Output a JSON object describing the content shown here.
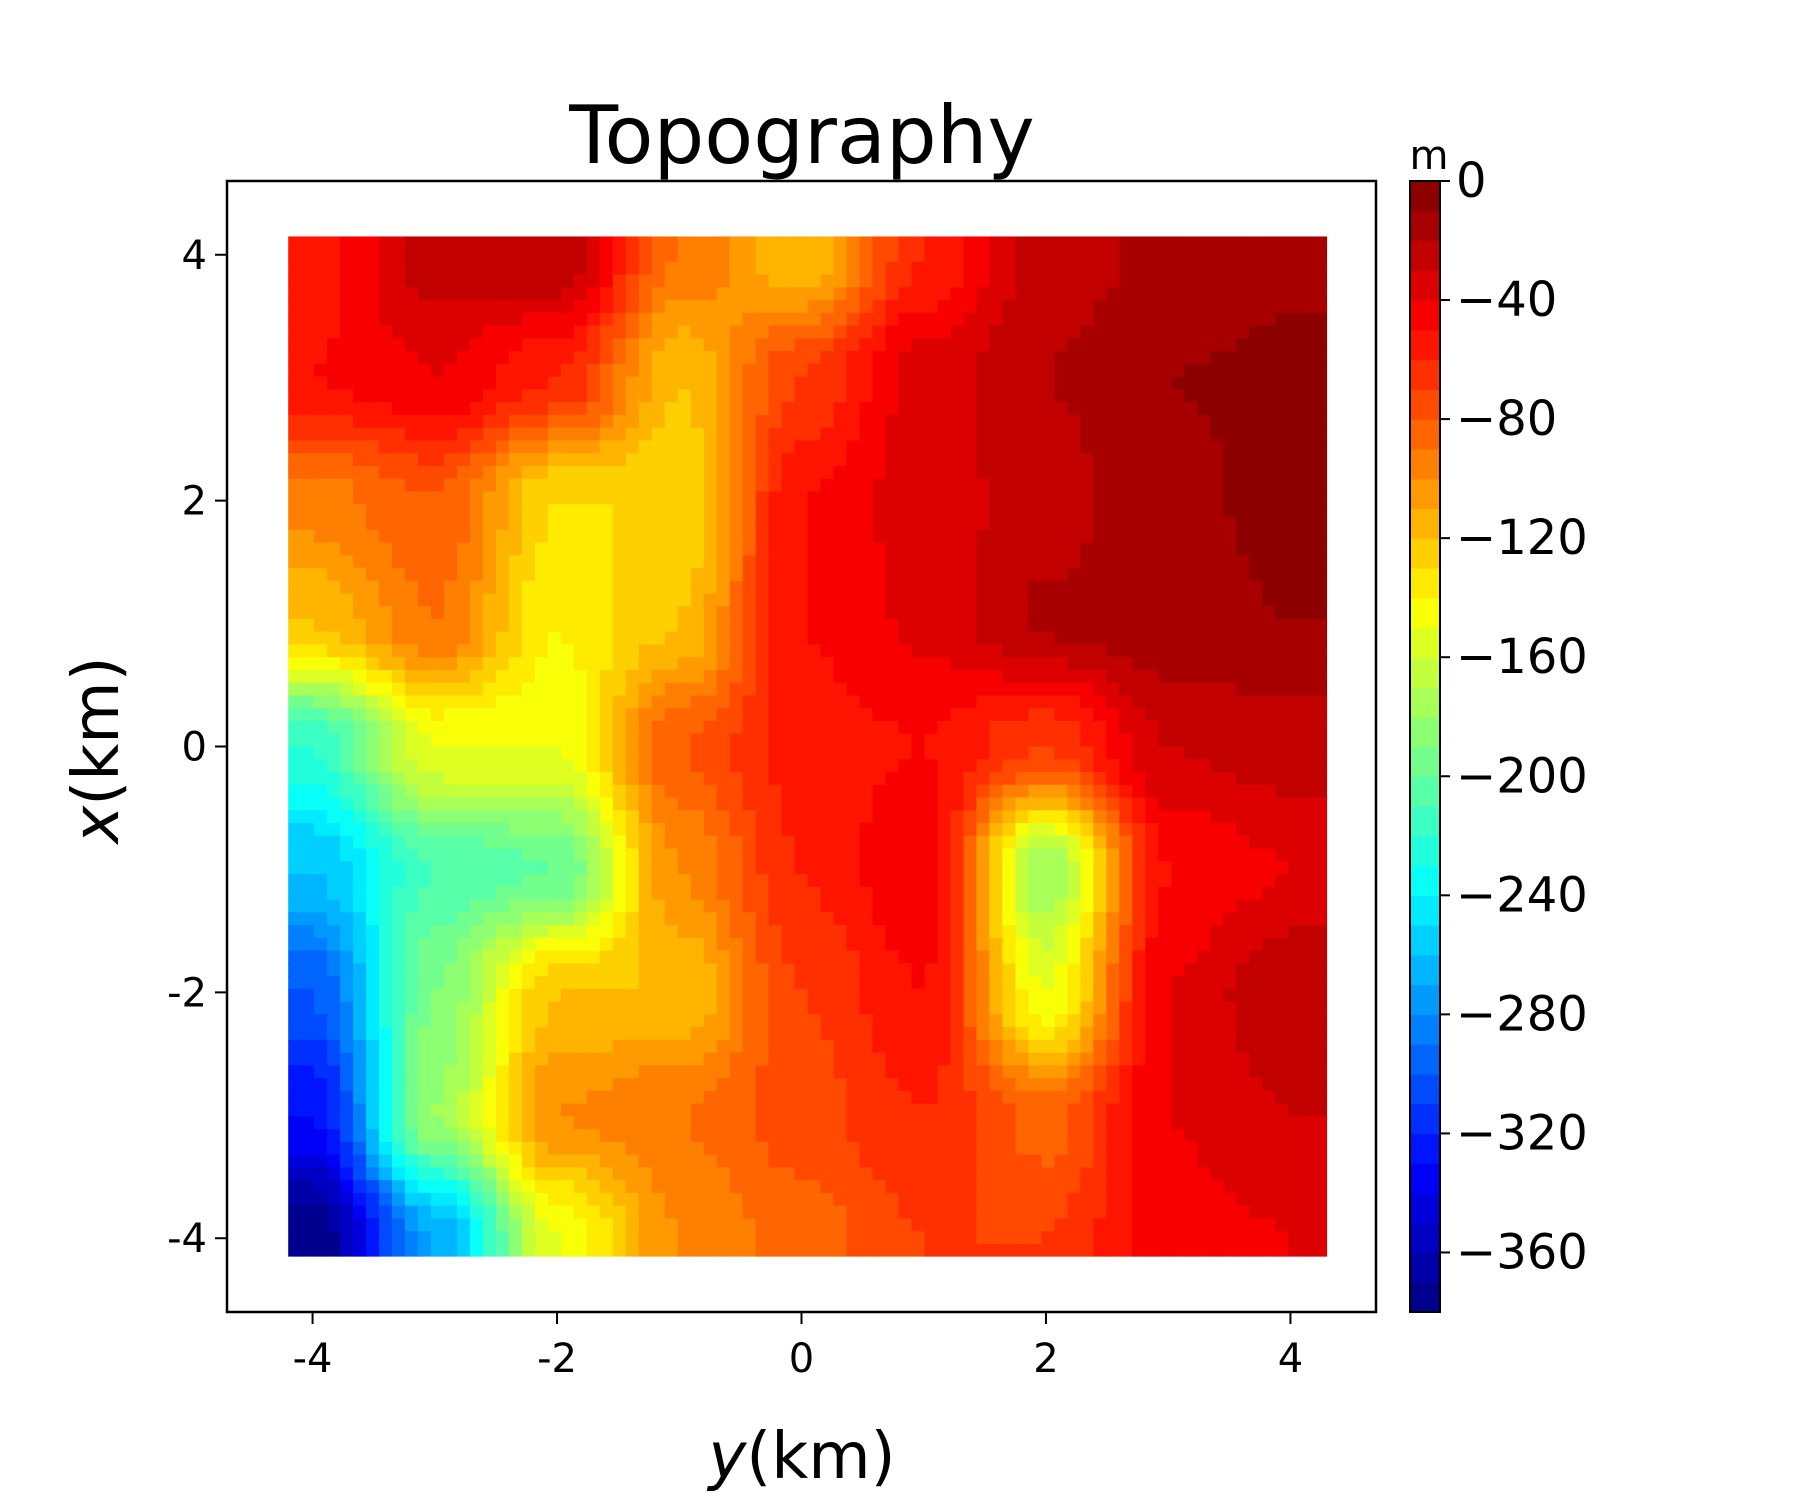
{
  "chart_data": {
    "type": "heatmap",
    "title": "Topography",
    "xlabel": {
      "var": "y",
      "unit": "(km)"
    },
    "ylabel": {
      "var": "x",
      "unit": "(km)"
    },
    "xlim": [
      -4.7,
      4.7
    ],
    "ylim": [
      -4.6,
      4.6
    ],
    "data_extent": {
      "x": [
        -4.2,
        4.3
      ],
      "y": [
        -4.15,
        4.15
      ]
    },
    "x_ticks": [
      {
        "value": -4,
        "label": "-4"
      },
      {
        "value": -2,
        "label": "-2"
      },
      {
        "value": 0,
        "label": "0"
      },
      {
        "value": 2,
        "label": "2"
      },
      {
        "value": 4,
        "label": "4"
      }
    ],
    "y_ticks": [
      {
        "value": 4,
        "label": "4"
      },
      {
        "value": 2,
        "label": "2"
      },
      {
        "value": 0,
        "label": "0"
      },
      {
        "value": -2,
        "label": "-2"
      },
      {
        "value": -4,
        "label": "-4"
      }
    ],
    "colorbar": {
      "label": "m",
      "range": [
        -380,
        0
      ],
      "colormap": "jet",
      "ticks": [
        {
          "value": 0,
          "label": "0"
        },
        {
          "value": -40,
          "label": "−40"
        },
        {
          "value": -80,
          "label": "−80"
        },
        {
          "value": -120,
          "label": "−120"
        },
        {
          "value": -160,
          "label": "−160"
        },
        {
          "value": -200,
          "label": "−200"
        },
        {
          "value": -240,
          "label": "−240"
        },
        {
          "value": -280,
          "label": "−280"
        },
        {
          "value": -320,
          "label": "−320"
        },
        {
          "value": -360,
          "label": "−360"
        }
      ]
    },
    "grid": false,
    "legend": "none",
    "grid_y": [
      -4,
      -3,
      -2,
      -1,
      0,
      1,
      2,
      3,
      4
    ],
    "grid_x": [
      4,
      3,
      2,
      1,
      0,
      -1,
      -2,
      -3,
      -4
    ],
    "z_values": [
      [
        -55,
        -25,
        -20,
        -90,
        -120,
        -60,
        -25,
        -18,
        -12
      ],
      [
        -50,
        -40,
        -60,
        -120,
        -70,
        -35,
        -20,
        -10,
        -8
      ],
      [
        -95,
        -80,
        -130,
        -130,
        -50,
        -35,
        -25,
        -12,
        -8
      ],
      [
        -120,
        -90,
        -140,
        -120,
        -50,
        -38,
        -18,
        -12,
        -10
      ],
      [
        -220,
        -150,
        -150,
        -80,
        -55,
        -50,
        -70,
        -30,
        -25
      ],
      [
        -260,
        -210,
        -200,
        -100,
        -60,
        -40,
        -180,
        -50,
        -40
      ],
      [
        -300,
        -190,
        -120,
        -120,
        -70,
        -50,
        -150,
        -40,
        -20
      ],
      [
        -330,
        -180,
        -100,
        -90,
        -75,
        -60,
        -85,
        -40,
        -30
      ],
      [
        -380,
        -270,
        -150,
        -100,
        -85,
        -70,
        -70,
        -45,
        -40
      ]
    ]
  }
}
